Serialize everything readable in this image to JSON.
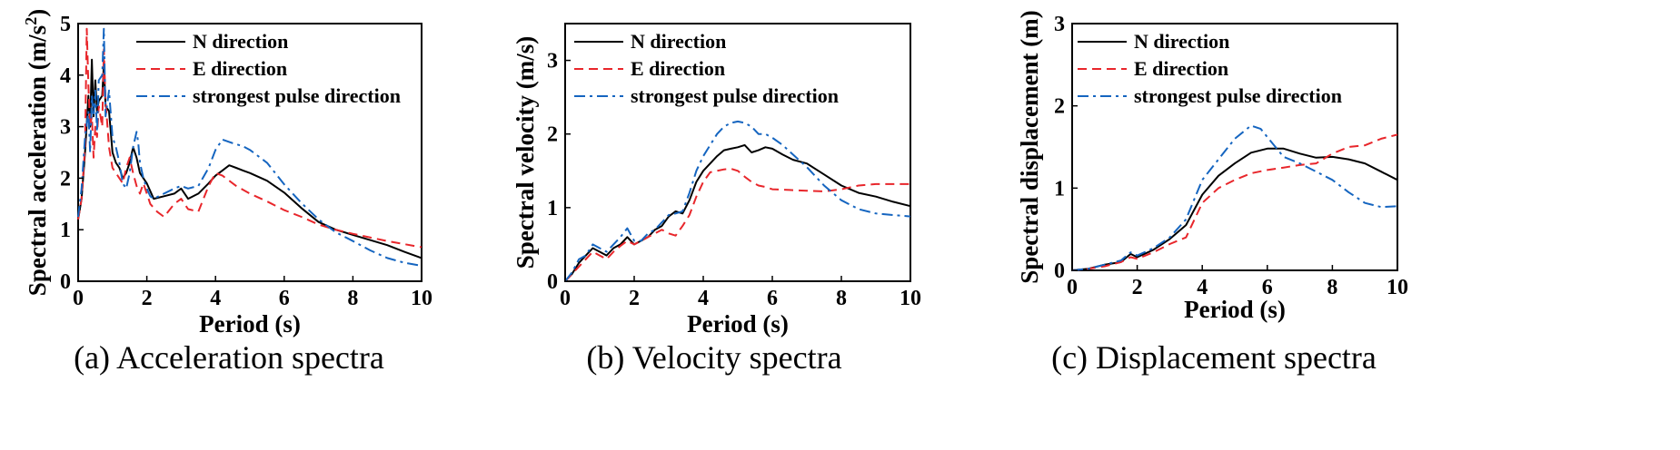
{
  "colors": {
    "N": "#000000",
    "E": "#e8262b",
    "strongest": "#1565c0"
  },
  "chart_data": [
    {
      "type": "line",
      "caption": "(a) Acceleration spectra",
      "xlabel": "Period (s)",
      "ylabel": "Spectral acceleration (m/s",
      "ylabel_sup": "2",
      "ylabel_end": ")",
      "xlim": [
        0,
        10
      ],
      "ylim": [
        0,
        5
      ],
      "xticks": [
        "0",
        "2",
        "4",
        "6",
        "8",
        "10"
      ],
      "yticks": [
        "0",
        "1",
        "2",
        "3",
        "4",
        "5"
      ],
      "legend_position": "top-right",
      "series": [
        {
          "name": "N direction",
          "style": "solid",
          "x": [
            0,
            0.1,
            0.2,
            0.3,
            0.35,
            0.4,
            0.45,
            0.5,
            0.55,
            0.6,
            0.7,
            0.75,
            0.8,
            0.9,
            1.0,
            1.1,
            1.2,
            1.3,
            1.4,
            1.5,
            1.6,
            1.7,
            1.8,
            1.9,
            2.0,
            2.1,
            2.2,
            2.5,
            2.8,
            3.0,
            3.2,
            3.5,
            3.8,
            4.0,
            4.2,
            4.4,
            4.6,
            4.8,
            5.0,
            5.5,
            6.0,
            6.5,
            7.0,
            7.5,
            8.0,
            8.5,
            9.0,
            9.5,
            10.0
          ],
          "y": [
            1.2,
            1.6,
            2.5,
            3.6,
            3.0,
            4.3,
            3.2,
            3.9,
            3.3,
            3.5,
            3.6,
            4.2,
            3.4,
            3.3,
            2.5,
            2.3,
            2.2,
            2.0,
            2.1,
            2.3,
            2.6,
            2.4,
            2.1,
            2.0,
            1.9,
            1.75,
            1.6,
            1.65,
            1.7,
            1.8,
            1.6,
            1.7,
            1.9,
            2.05,
            2.15,
            2.25,
            2.2,
            2.15,
            2.1,
            1.95,
            1.72,
            1.42,
            1.15,
            1.0,
            0.9,
            0.8,
            0.7,
            0.57,
            0.45
          ]
        },
        {
          "name": "E  direction",
          "style": "dash",
          "x": [
            0,
            0.1,
            0.2,
            0.25,
            0.3,
            0.35,
            0.4,
            0.45,
            0.5,
            0.55,
            0.6,
            0.7,
            0.75,
            0.8,
            0.9,
            1.0,
            1.1,
            1.2,
            1.3,
            1.4,
            1.5,
            1.6,
            1.7,
            1.8,
            1.9,
            2.0,
            2.1,
            2.3,
            2.5,
            2.8,
            3.0,
            3.2,
            3.5,
            3.8,
            4.0,
            4.2,
            4.4,
            4.6,
            5.0,
            5.5,
            6.0,
            6.5,
            7.0,
            7.5,
            8.0,
            8.5,
            9.0,
            9.5,
            10.0
          ],
          "y": [
            1.2,
            1.6,
            2.6,
            4.9,
            3.8,
            3.0,
            3.2,
            2.4,
            3.0,
            2.8,
            3.4,
            3.0,
            4.5,
            3.5,
            2.6,
            2.2,
            2.1,
            2.0,
            1.9,
            2.2,
            2.4,
            2.1,
            1.85,
            1.7,
            1.9,
            1.7,
            1.5,
            1.35,
            1.25,
            1.5,
            1.6,
            1.4,
            1.35,
            1.85,
            2.1,
            2.05,
            1.95,
            1.85,
            1.7,
            1.55,
            1.38,
            1.25,
            1.1,
            1.0,
            0.92,
            0.85,
            0.78,
            0.72,
            0.66
          ]
        },
        {
          "name": "strongest pulse direction",
          "style": "dashdot",
          "x": [
            0,
            0.1,
            0.2,
            0.3,
            0.35,
            0.4,
            0.45,
            0.5,
            0.55,
            0.6,
            0.7,
            0.75,
            0.8,
            0.9,
            1.0,
            1.1,
            1.2,
            1.3,
            1.4,
            1.5,
            1.6,
            1.7,
            1.75,
            1.8,
            1.9,
            2.0,
            2.1,
            2.2,
            2.5,
            2.8,
            3.0,
            3.2,
            3.5,
            3.8,
            4.0,
            4.2,
            4.5,
            4.8,
            5.0,
            5.5,
            6.0,
            6.5,
            7.0,
            7.5,
            8.0,
            8.5,
            9.0,
            9.5,
            10.0
          ],
          "y": [
            1.25,
            1.8,
            2.8,
            3.3,
            2.5,
            3.6,
            3.2,
            3.7,
            2.9,
            3.9,
            4.0,
            4.9,
            3.2,
            3.7,
            2.8,
            2.6,
            2.3,
            1.9,
            1.8,
            2.1,
            2.6,
            2.9,
            2.7,
            2.3,
            2.0,
            1.8,
            1.65,
            1.6,
            1.7,
            1.8,
            1.85,
            1.8,
            1.85,
            2.2,
            2.55,
            2.75,
            2.68,
            2.62,
            2.55,
            2.3,
            1.88,
            1.52,
            1.2,
            0.95,
            0.78,
            0.6,
            0.45,
            0.36,
            0.3
          ]
        }
      ]
    },
    {
      "type": "line",
      "caption": "(b) Velocity spectra",
      "xlabel": "Period (s)",
      "ylabel": "Spectral velocity (m/s)",
      "xlim": [
        0,
        10
      ],
      "ylim": [
        0,
        3.5
      ],
      "xticks": [
        "0",
        "2",
        "4",
        "6",
        "8",
        "10"
      ],
      "yticks": [
        "0",
        "1",
        "2",
        "3"
      ],
      "legend_position": "top-right",
      "series": [
        {
          "name": "N direction",
          "style": "solid",
          "x": [
            0,
            0.2,
            0.4,
            0.6,
            0.8,
            1.0,
            1.2,
            1.4,
            1.6,
            1.8,
            2.0,
            2.2,
            2.4,
            2.6,
            2.8,
            3.0,
            3.2,
            3.4,
            3.6,
            3.8,
            4.0,
            4.2,
            4.4,
            4.6,
            4.8,
            5.0,
            5.2,
            5.4,
            5.6,
            5.8,
            6.0,
            6.3,
            6.6,
            7.0,
            7.5,
            8.0,
            8.5,
            9.0,
            9.5,
            10.0
          ],
          "y": [
            0,
            0.1,
            0.25,
            0.35,
            0.45,
            0.4,
            0.35,
            0.45,
            0.5,
            0.6,
            0.5,
            0.55,
            0.6,
            0.7,
            0.75,
            0.88,
            0.95,
            0.92,
            1.1,
            1.35,
            1.5,
            1.6,
            1.7,
            1.78,
            1.8,
            1.82,
            1.85,
            1.75,
            1.78,
            1.82,
            1.8,
            1.72,
            1.65,
            1.6,
            1.45,
            1.3,
            1.2,
            1.15,
            1.08,
            1.02
          ]
        },
        {
          "name": "E direction",
          "style": "dash",
          "x": [
            0,
            0.2,
            0.4,
            0.6,
            0.8,
            1.0,
            1.2,
            1.4,
            1.6,
            1.8,
            2.0,
            2.2,
            2.4,
            2.6,
            2.8,
            3.0,
            3.2,
            3.4,
            3.6,
            3.8,
            4.0,
            4.2,
            4.4,
            4.6,
            4.8,
            5.0,
            5.2,
            5.4,
            5.6,
            5.8,
            6.0,
            6.5,
            7.0,
            7.5,
            8.0,
            8.5,
            9.0,
            9.5,
            10.0
          ],
          "y": [
            0,
            0.1,
            0.2,
            0.3,
            0.4,
            0.35,
            0.3,
            0.4,
            0.48,
            0.55,
            0.5,
            0.55,
            0.6,
            0.65,
            0.7,
            0.65,
            0.62,
            0.75,
            0.9,
            1.15,
            1.35,
            1.48,
            1.5,
            1.52,
            1.53,
            1.5,
            1.42,
            1.35,
            1.3,
            1.28,
            1.25,
            1.24,
            1.23,
            1.22,
            1.25,
            1.3,
            1.32,
            1.32,
            1.32
          ]
        },
        {
          "name": "strongest pulse direction",
          "style": "dashdot",
          "x": [
            0,
            0.2,
            0.4,
            0.6,
            0.8,
            1.0,
            1.2,
            1.4,
            1.6,
            1.8,
            2.0,
            2.2,
            2.4,
            2.6,
            2.8,
            3.0,
            3.2,
            3.4,
            3.6,
            3.8,
            4.0,
            4.2,
            4.4,
            4.6,
            4.8,
            5.0,
            5.2,
            5.4,
            5.6,
            5.8,
            6.0,
            6.3,
            6.6,
            7.0,
            7.5,
            8.0,
            8.5,
            9.0,
            9.5,
            10.0
          ],
          "y": [
            0,
            0.12,
            0.3,
            0.35,
            0.5,
            0.45,
            0.4,
            0.5,
            0.6,
            0.72,
            0.55,
            0.55,
            0.65,
            0.7,
            0.8,
            0.9,
            0.92,
            0.95,
            1.2,
            1.5,
            1.7,
            1.85,
            2.0,
            2.1,
            2.15,
            2.17,
            2.15,
            2.1,
            2.0,
            2.0,
            1.95,
            1.85,
            1.72,
            1.55,
            1.3,
            1.1,
            0.98,
            0.92,
            0.9,
            0.88
          ]
        }
      ]
    },
    {
      "type": "line",
      "caption": "(c) Displacement spectra",
      "xlabel": "Period (s)",
      "ylabel": "Spectral displacement (m)",
      "xlim": [
        0,
        10
      ],
      "ylim": [
        0,
        3
      ],
      "xticks": [
        "0",
        "2",
        "4",
        "6",
        "8",
        "10"
      ],
      "yticks": [
        "0",
        "1",
        "2",
        "3"
      ],
      "legend_position": "top-right",
      "series": [
        {
          "name": "N direction",
          "style": "solid",
          "x": [
            0,
            0.5,
            1.0,
            1.5,
            1.8,
            2.0,
            2.5,
            3.0,
            3.5,
            4.0,
            4.5,
            5.0,
            5.5,
            6.0,
            6.5,
            7.0,
            7.5,
            8.0,
            8.5,
            9.0,
            9.5,
            10.0
          ],
          "y": [
            0,
            0.02,
            0.07,
            0.1,
            0.2,
            0.16,
            0.25,
            0.38,
            0.55,
            0.92,
            1.15,
            1.3,
            1.43,
            1.48,
            1.48,
            1.42,
            1.37,
            1.38,
            1.35,
            1.3,
            1.2,
            1.1
          ]
        },
        {
          "name": "E direction",
          "style": "dash",
          "x": [
            0,
            0.5,
            1.0,
            1.5,
            1.8,
            2.0,
            2.5,
            3.0,
            3.5,
            4.0,
            4.5,
            5.0,
            5.5,
            6.0,
            6.5,
            7.0,
            7.5,
            8.0,
            8.5,
            9.0,
            9.5,
            10.0
          ],
          "y": [
            0,
            0.02,
            0.05,
            0.1,
            0.16,
            0.14,
            0.22,
            0.32,
            0.4,
            0.82,
            1.0,
            1.1,
            1.18,
            1.22,
            1.25,
            1.28,
            1.3,
            1.42,
            1.5,
            1.52,
            1.6,
            1.65
          ]
        },
        {
          "name": "strongest pulse direction",
          "style": "dashdot",
          "x": [
            0,
            0.5,
            1.0,
            1.5,
            1.8,
            2.0,
            2.5,
            3.0,
            3.5,
            4.0,
            4.5,
            5.0,
            5.5,
            5.8,
            6.0,
            6.5,
            7.0,
            7.5,
            8.0,
            8.5,
            9.0,
            9.5,
            10.0
          ],
          "y": [
            0,
            0.02,
            0.07,
            0.12,
            0.22,
            0.18,
            0.27,
            0.4,
            0.62,
            1.1,
            1.35,
            1.6,
            1.76,
            1.72,
            1.62,
            1.38,
            1.3,
            1.2,
            1.1,
            0.95,
            0.82,
            0.77,
            0.78
          ]
        }
      ]
    }
  ]
}
